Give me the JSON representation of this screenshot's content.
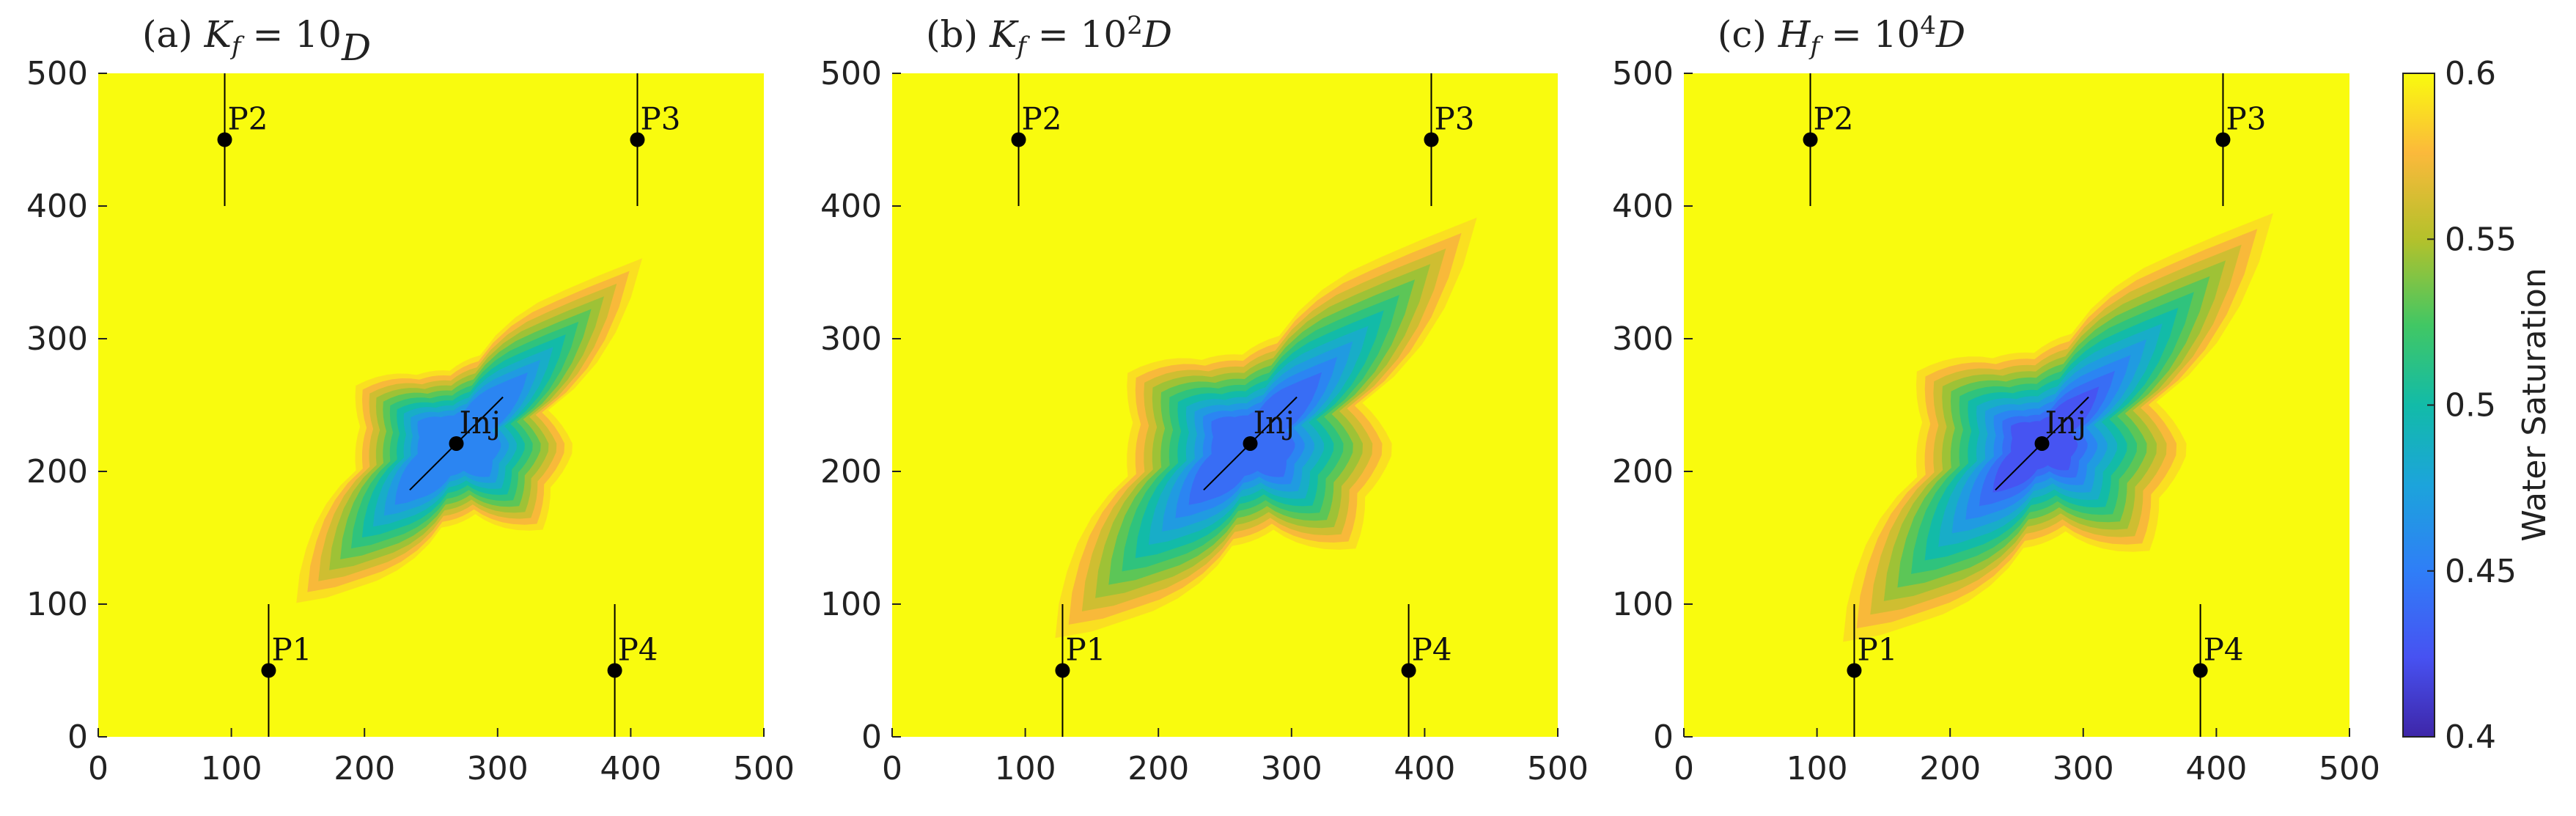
{
  "chart_data": [
    {
      "type": "heatmap",
      "title": {
        "prefix": "(a) ",
        "var": "K",
        "sub": "f",
        "mid": " = 10",
        "sup": "",
        "unit": "D"
      },
      "xlim": [
        0,
        500
      ],
      "ylim": [
        0,
        500
      ],
      "xticks": [
        "0",
        "100",
        "200",
        "300",
        "400",
        "500"
      ],
      "yticks": [
        "0",
        "100",
        "200",
        "300",
        "400",
        "500"
      ],
      "wells": [
        {
          "label": "P1",
          "x": 128,
          "y": 50
        },
        {
          "label": "P2",
          "x": 95,
          "y": 450
        },
        {
          "label": "P3",
          "x": 405,
          "y": 450
        },
        {
          "label": "P4",
          "x": 388,
          "y": 50
        },
        {
          "label": "Inj",
          "x": 269,
          "y": 221
        }
      ],
      "plume_scale": 0.82,
      "min_saturation": 0.45
    },
    {
      "type": "heatmap",
      "title": {
        "prefix": "(b) ",
        "var": "K",
        "sub": "f",
        "mid": " = 10",
        "sup": "2",
        "unit": "D"
      },
      "xlim": [
        0,
        500
      ],
      "ylim": [
        0,
        500
      ],
      "xticks": [
        "0",
        "100",
        "200",
        "300",
        "400",
        "500"
      ],
      "yticks": [
        "0",
        "100",
        "200",
        "300",
        "400",
        "500"
      ],
      "wells": [
        {
          "label": "P1",
          "x": 128,
          "y": 50
        },
        {
          "label": "P2",
          "x": 95,
          "y": 450
        },
        {
          "label": "P3",
          "x": 405,
          "y": 450
        },
        {
          "label": "P4",
          "x": 388,
          "y": 50
        },
        {
          "label": "Inj",
          "x": 269,
          "y": 221
        }
      ],
      "plume_scale": 1.0,
      "min_saturation": 0.43
    },
    {
      "type": "heatmap",
      "title": {
        "prefix": "(c) ",
        "var": "H",
        "sub": "f",
        "mid": " = 10",
        "sup": "4",
        "unit": "D"
      },
      "xlim": [
        0,
        500
      ],
      "ylim": [
        0,
        500
      ],
      "xticks": [
        "0",
        "100",
        "200",
        "300",
        "400",
        "500"
      ],
      "yticks": [
        "0",
        "100",
        "200",
        "300",
        "400",
        "500"
      ],
      "wells": [
        {
          "label": "P1",
          "x": 128,
          "y": 50
        },
        {
          "label": "P2",
          "x": 95,
          "y": 450
        },
        {
          "label": "P3",
          "x": 405,
          "y": 450
        },
        {
          "label": "P4",
          "x": 388,
          "y": 50
        },
        {
          "label": "Inj",
          "x": 269,
          "y": 221
        }
      ],
      "plume_scale": 1.02,
      "min_saturation": 0.415
    }
  ],
  "colorbar": {
    "label": "Water Saturation",
    "range": [
      0.4,
      0.6
    ],
    "ticks": [
      "0.4",
      "0.45",
      "0.5",
      "0.55",
      "0.6"
    ],
    "colormap": "parula"
  }
}
